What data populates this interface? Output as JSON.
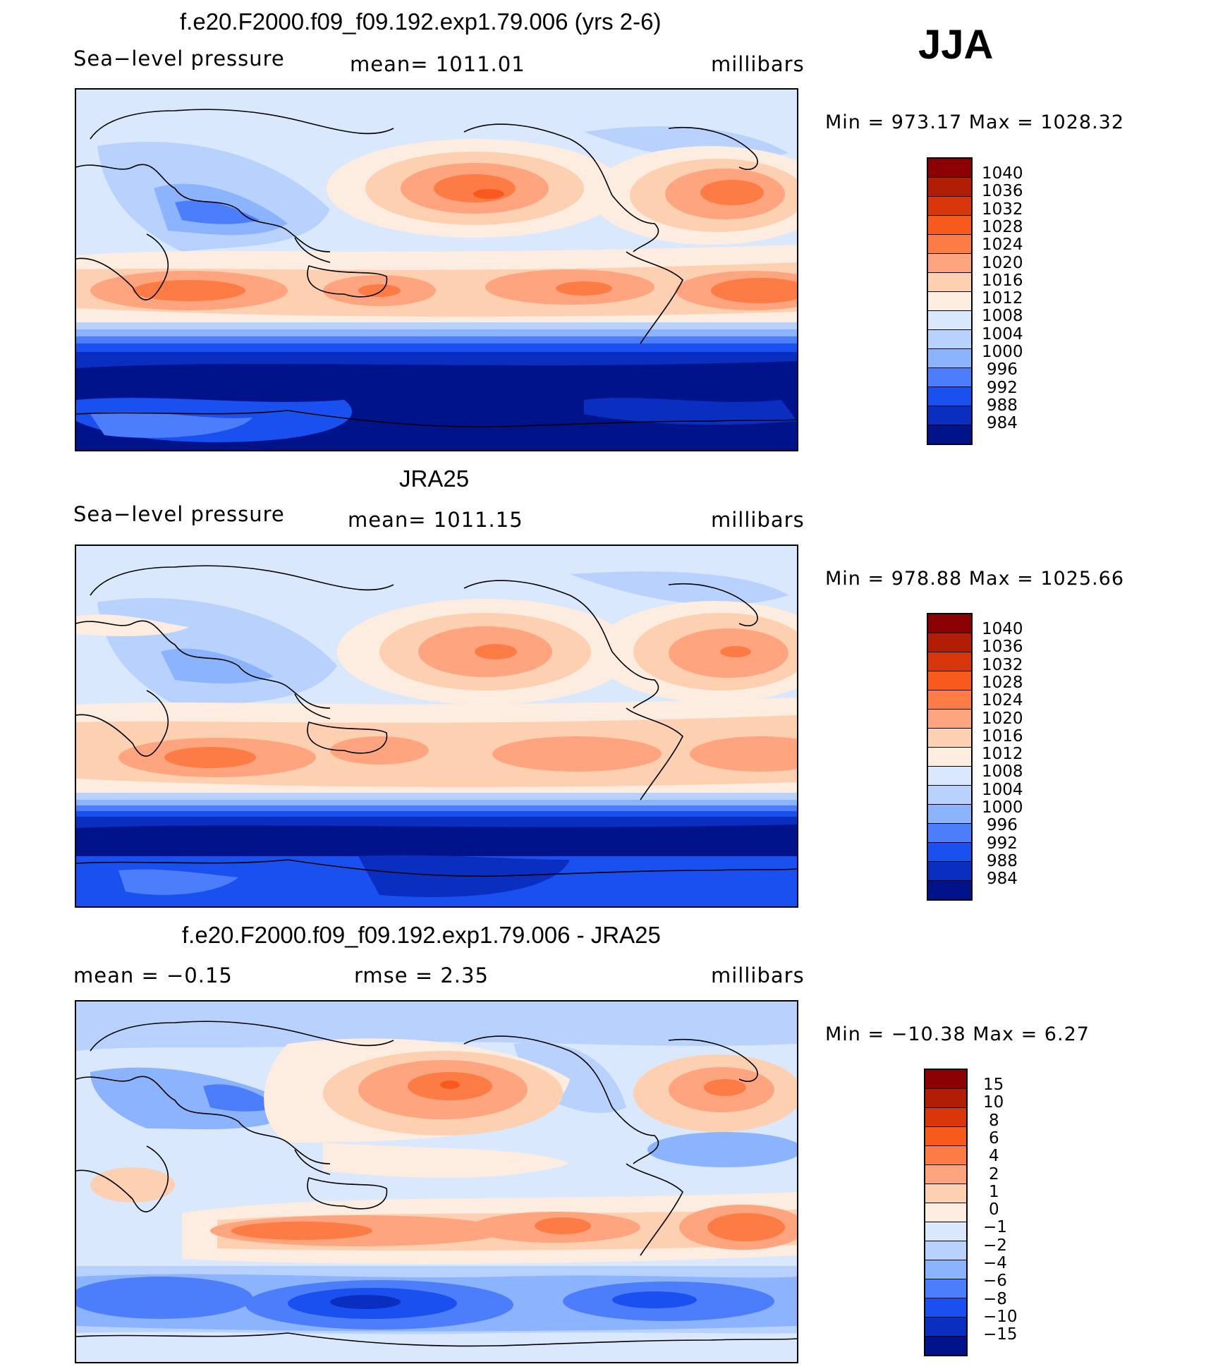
{
  "season": "JJA",
  "panels": [
    {
      "title": "f.e20.F2000.f09_f09.192.exp1.79.006 (yrs 2-6)",
      "left_label": "Sea−level pressure",
      "center_label": "mean=  1011.01",
      "right_label": "millibars",
      "minmax": "Min  =  973.17  Max  =  1028.32",
      "type": "absolute"
    },
    {
      "title": "JRA25",
      "left_label": "Sea−level pressure",
      "center_label": "mean=  1011.15",
      "right_label": "millibars",
      "minmax": "Min  =  978.88  Max  =  1025.66",
      "type": "absolute"
    },
    {
      "title": "f.e20.F2000.f09_f09.192.exp1.79.006 - JRA25",
      "left_label": "mean  =    −0.15",
      "center_label": "rmse  =     2.35",
      "right_label": "millibars",
      "minmax": "Min  =  −10.38  Max  =      6.27",
      "type": "difference"
    }
  ],
  "colorbars": {
    "absolute": {
      "labels": [
        "1040",
        "1036",
        "1032",
        "1028",
        "1024",
        "1020",
        "1016",
        "1012",
        "1008",
        "1004",
        "1000",
        "996",
        "992",
        "988",
        "984"
      ],
      "colors": [
        "#8b0000",
        "#b11d05",
        "#d9360c",
        "#f85a1d",
        "#fd7c45",
        "#fea57f",
        "#fed0b2",
        "#fdece0",
        "#d9e8fc",
        "#b8d2fd",
        "#8cb3fd",
        "#4c7efc",
        "#1a50f0",
        "#0a2fc0",
        "#00138a"
      ]
    },
    "difference": {
      "labels": [
        "15",
        "10",
        "8",
        "6",
        "4",
        "2",
        "1",
        "0",
        "−1",
        "−2",
        "−4",
        "−6",
        "−8",
        "−10",
        "−15"
      ],
      "colors": [
        "#8b0000",
        "#b11d05",
        "#d9360c",
        "#f85a1d",
        "#fd7c45",
        "#fea57f",
        "#fed0b2",
        "#fdece0",
        "#d9e8fc",
        "#b8d2fd",
        "#8cb3fd",
        "#4c7efc",
        "#1a50f0",
        "#0a2fc0",
        "#00138a"
      ]
    }
  }
}
